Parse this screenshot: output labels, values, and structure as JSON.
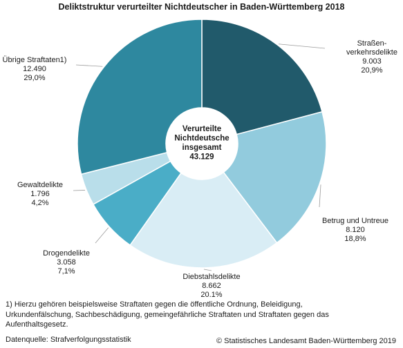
{
  "title": "Deliktstruktur verurteilter Nichtdeutscher in Baden-Württemberg 2018",
  "chart_data": {
    "type": "pie",
    "style": "donut",
    "center_label": [
      "Verurteilte",
      "Nichtdeutsche",
      "insgesamt",
      "43.129"
    ],
    "total": 43129,
    "slices": [
      {
        "label": [
          "Straßen-",
          "verkehrsdelikte"
        ],
        "value": 9003,
        "value_text": "9.003",
        "percent_text": "20,9%",
        "color": "#215a6b"
      },
      {
        "label": [
          "Betrug und Untreue"
        ],
        "value": 8120,
        "value_text": "8.120",
        "percent_text": "18,8%",
        "color": "#92cbdd"
      },
      {
        "label": [
          "Diebstahlsdelikte"
        ],
        "value": 8662,
        "value_text": "8.662",
        "percent_text": "20,1%",
        "color": "#d9edf5"
      },
      {
        "label": [
          "Drogendelikte"
        ],
        "value": 3058,
        "value_text": "3.058",
        "percent_text": "7,1%",
        "color": "#4aadc7"
      },
      {
        "label": [
          "Gewaltdelikte"
        ],
        "value": 1796,
        "value_text": "1.796",
        "percent_text": "4,2%",
        "color": "#b9deea"
      },
      {
        "label": [
          "Übrige Straftaten1)"
        ],
        "value": 12490,
        "value_text": "12.490",
        "percent_text": "29,0%",
        "color": "#2e889f"
      }
    ]
  },
  "footnote": "1) Hierzu gehören beispielsweise Straftaten gegen die öffentliche Ordnung, Beleidigung, Urkundenfälschung, Sachbeschädigung, gemeingefährliche Straftaten und Straftaten gegen das Aufenthaltsgesetz.",
  "source": "Datenquelle: Strafverfolgungsstatistik",
  "copyright": "© Statistisches Landesamt Baden-Württemberg 2019"
}
